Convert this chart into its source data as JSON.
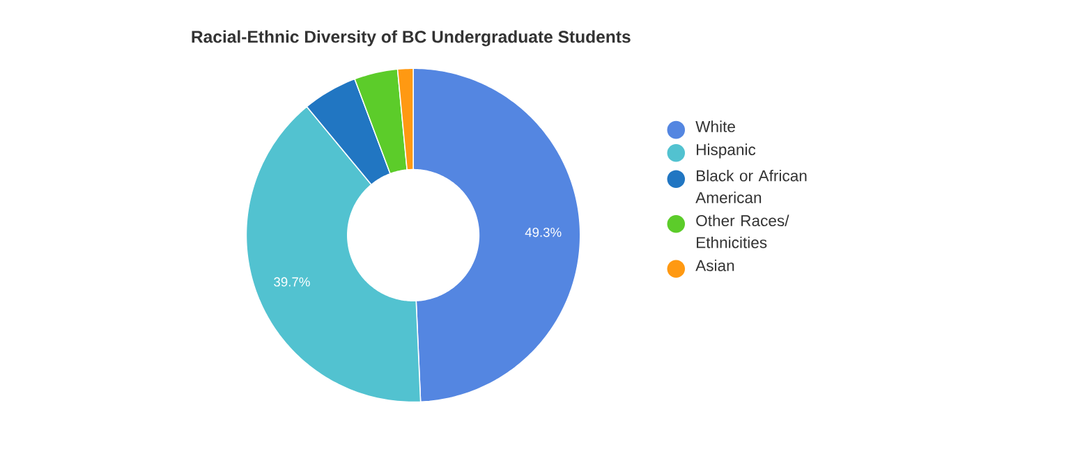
{
  "chart_data": {
    "type": "donut",
    "title": "Racial-Ethnic Diversity of BC Undergraduate Students",
    "categories": [
      "White",
      "Hispanic",
      "Black or African American",
      "Other Races/ Ethnicities",
      "Asian"
    ],
    "values": [
      49.3,
      39.7,
      5.3,
      4.2,
      1.5
    ],
    "colors": [
      "#5486e1",
      "#52c2d0",
      "#2176c2",
      "#5ccc2a",
      "#ff9912"
    ],
    "value_labels": [
      "49.3%",
      "39.7%",
      null,
      null,
      null
    ],
    "legend": "right"
  }
}
